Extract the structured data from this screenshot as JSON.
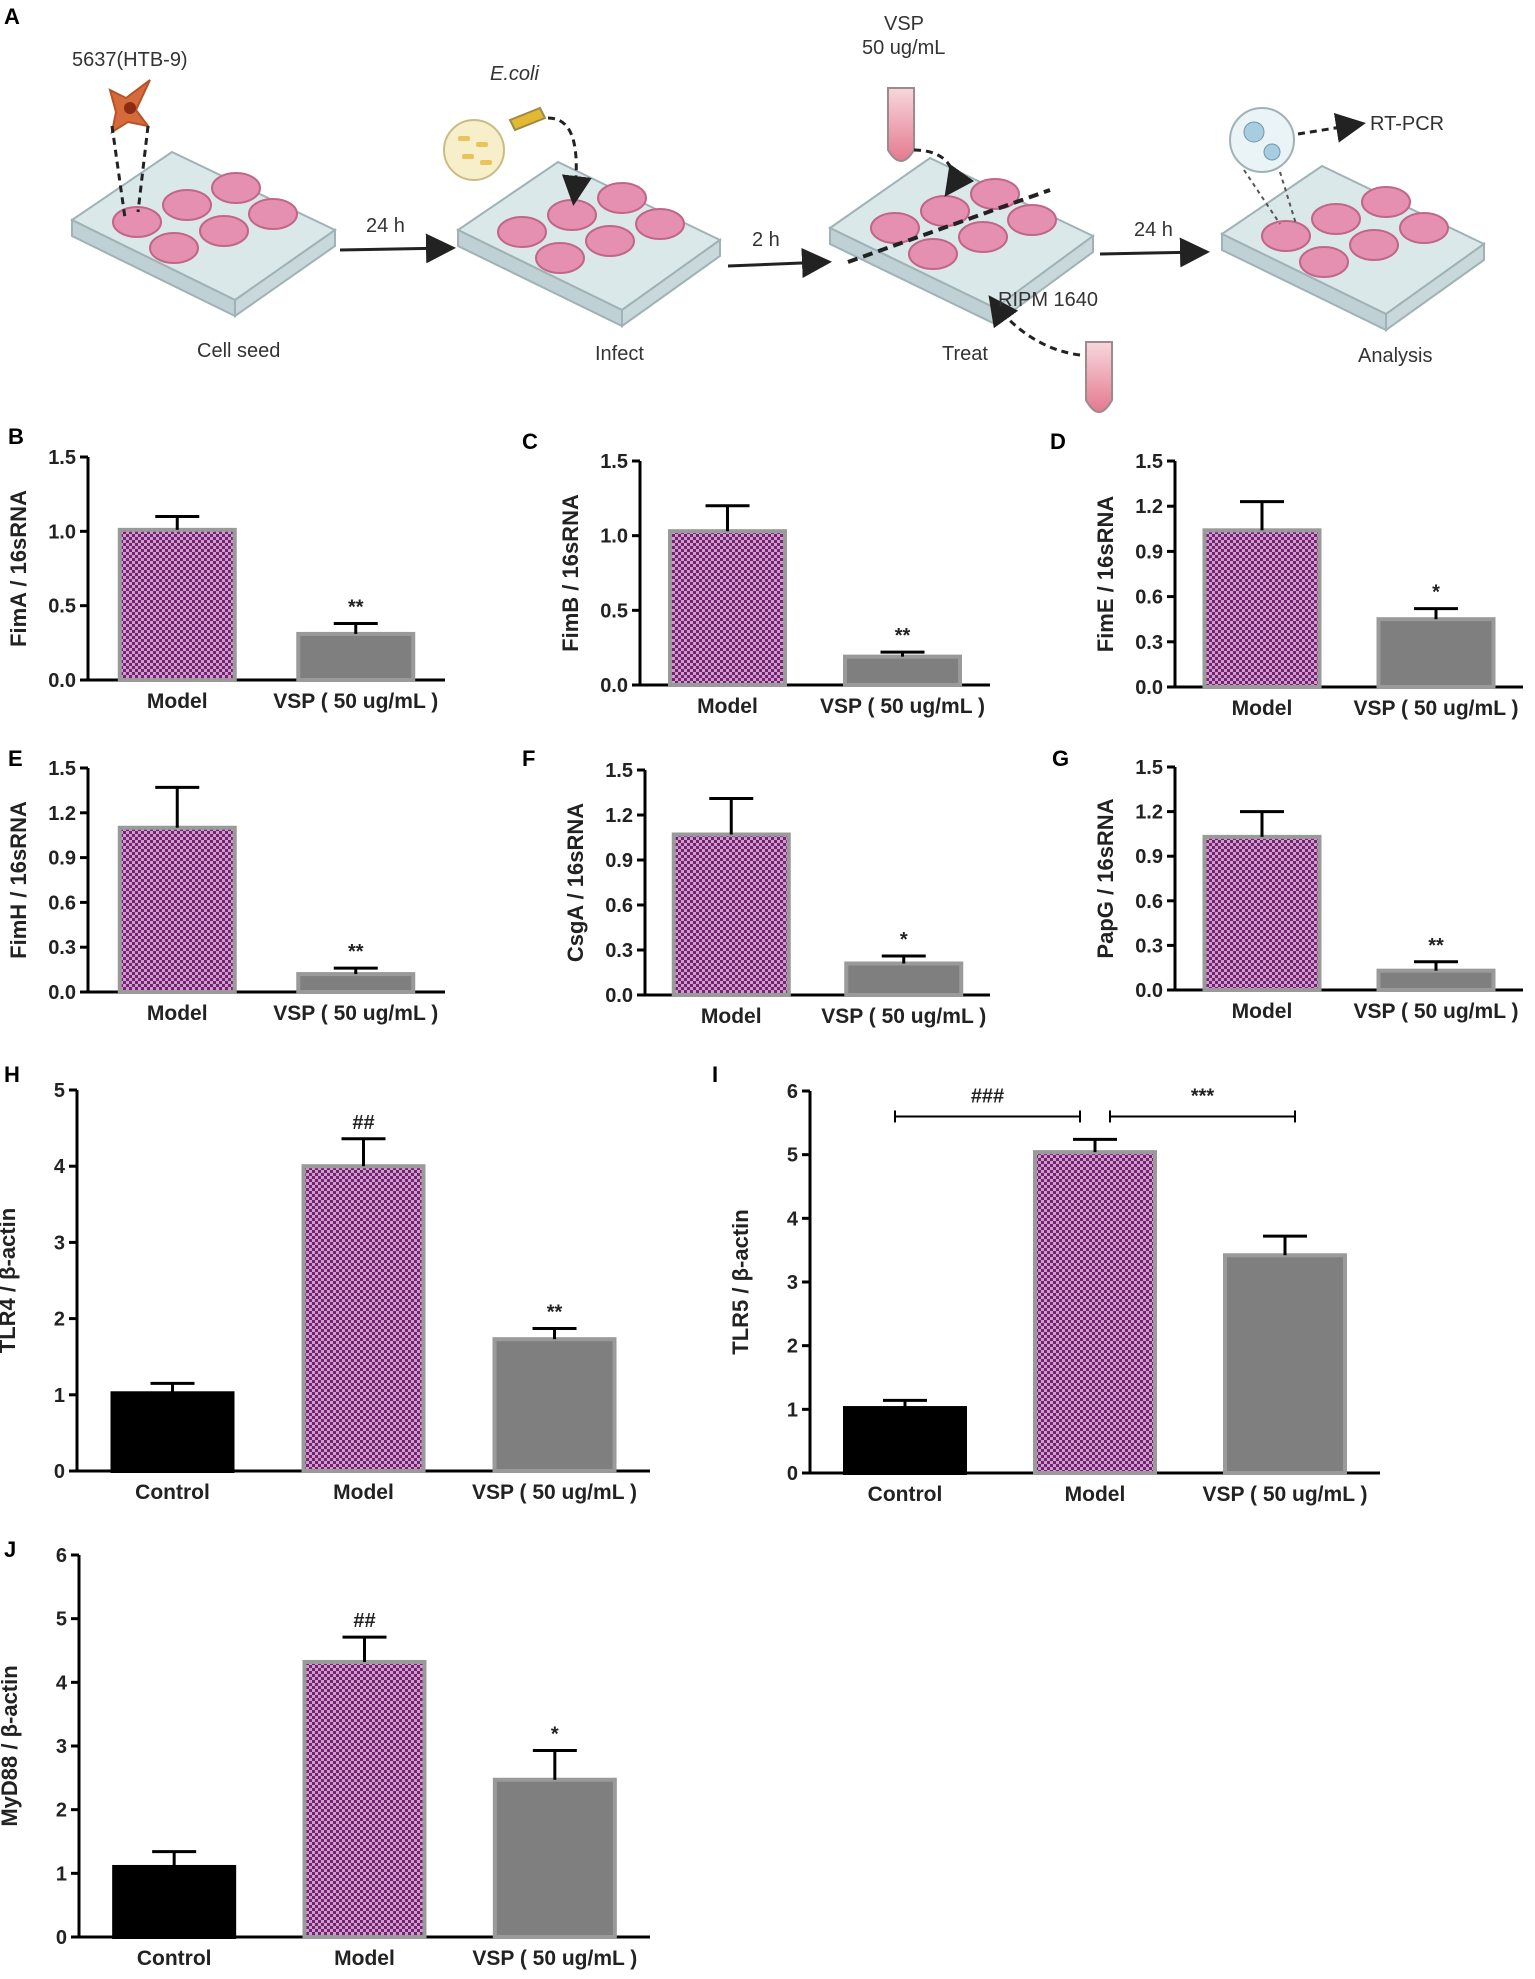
{
  "workflow": {
    "panel_label": "A",
    "cell_line": "5637(HTB-9)",
    "bacteria": "E.coli",
    "treatment_name": "VSP",
    "treatment_dose": "50 ug/mL",
    "medium": "RIPM 1640",
    "assay": "RT-PCR",
    "steps": [
      "24 h",
      "2 h",
      "24 h"
    ],
    "stages": [
      "Cell seed",
      "Infect",
      "Treat",
      "Analysis"
    ]
  },
  "chart_data": [
    {
      "panel": "B",
      "type": "bar",
      "ylabel": "FimA / 16sRNA",
      "categories": [
        "Model",
        "VSP ( 50 ug/mL )"
      ],
      "values": [
        1.01,
        0.31
      ],
      "errors": [
        0.09,
        0.07
      ],
      "significance": [
        "",
        "**"
      ],
      "ylim": [
        0,
        1.5
      ],
      "yticks": [
        "0.0",
        "0.5",
        "1.0",
        "1.5"
      ]
    },
    {
      "panel": "C",
      "type": "bar",
      "ylabel": "FimB / 16sRNA",
      "categories": [
        "Model",
        "VSP ( 50 ug/mL )"
      ],
      "values": [
        1.03,
        0.19
      ],
      "errors": [
        0.17,
        0.03
      ],
      "significance": [
        "",
        "**"
      ],
      "ylim": [
        0,
        1.5
      ],
      "yticks": [
        "0.0",
        "0.5",
        "1.0",
        "1.5"
      ]
    },
    {
      "panel": "D",
      "type": "bar",
      "ylabel": "FimE / 16sRNA",
      "categories": [
        "Model",
        "VSP ( 50 ug/mL )"
      ],
      "values": [
        1.04,
        0.45
      ],
      "errors": [
        0.19,
        0.07
      ],
      "significance": [
        "",
        "*"
      ],
      "ylim": [
        0,
        1.5
      ],
      "yticks": [
        "0.0",
        "0.3",
        "0.6",
        "0.9",
        "1.2",
        "1.5"
      ]
    },
    {
      "panel": "E",
      "type": "bar",
      "ylabel": "FimH / 16sRNA",
      "categories": [
        "Model",
        "VSP ( 50 ug/mL )"
      ],
      "values": [
        1.1,
        0.12
      ],
      "errors": [
        0.27,
        0.04
      ],
      "significance": [
        "",
        "**"
      ],
      "ylim": [
        0,
        1.5
      ],
      "yticks": [
        "0.0",
        "0.3",
        "0.6",
        "0.9",
        "1.2",
        "1.5"
      ]
    },
    {
      "panel": "F",
      "type": "bar",
      "ylabel": "CsgA / 16sRNA",
      "categories": [
        "Model",
        "VSP ( 50 ug/mL )"
      ],
      "values": [
        1.07,
        0.21
      ],
      "errors": [
        0.24,
        0.05
      ],
      "significance": [
        "",
        "*"
      ],
      "ylim": [
        0,
        1.5
      ],
      "yticks": [
        "0.0",
        "0.3",
        "0.6",
        "0.9",
        "1.2",
        "1.5"
      ]
    },
    {
      "panel": "G",
      "type": "bar",
      "ylabel": "PapG / 16sRNA",
      "categories": [
        "Model",
        "VSP ( 50 ug/mL )"
      ],
      "values": [
        1.03,
        0.13
      ],
      "errors": [
        0.17,
        0.06
      ],
      "significance": [
        "",
        "**"
      ],
      "ylim": [
        0,
        1.5
      ],
      "yticks": [
        "0.0",
        "0.3",
        "0.6",
        "0.9",
        "1.2",
        "1.5"
      ]
    },
    {
      "panel": "H",
      "type": "bar",
      "ylabel": "TLR4 / β-actin",
      "categories": [
        "Control",
        "Model",
        "VSP ( 50 ug/mL )"
      ],
      "values": [
        1.02,
        4.0,
        1.73
      ],
      "errors": [
        0.13,
        0.36,
        0.14
      ],
      "significance": [
        "",
        "##",
        "**"
      ],
      "ylim": [
        0,
        5
      ],
      "yticks": [
        "0",
        "1",
        "2",
        "3",
        "4",
        "5"
      ]
    },
    {
      "panel": "I",
      "type": "bar",
      "ylabel": "TLR5 / β-actin",
      "categories": [
        "Control",
        "Model",
        "VSP ( 50 ug/mL )"
      ],
      "values": [
        1.02,
        5.04,
        3.42
      ],
      "errors": [
        0.12,
        0.2,
        0.3
      ],
      "significance": [
        "",
        "",
        ""
      ],
      "ylim": [
        0,
        6
      ],
      "yticks": [
        "0",
        "1",
        "2",
        "3",
        "4",
        "5",
        "6"
      ],
      "brackets": [
        {
          "from": 0,
          "to": 1,
          "label": "###"
        },
        {
          "from": 1,
          "to": 2,
          "label": "***"
        }
      ],
      "bracket_y": 5.6
    },
    {
      "panel": "J",
      "type": "bar",
      "ylabel": "MyD88 / β-actin",
      "categories": [
        "Control",
        "Model",
        "VSP ( 50 ug/mL )"
      ],
      "values": [
        1.1,
        4.32,
        2.47
      ],
      "errors": [
        0.24,
        0.39,
        0.46
      ],
      "significance": [
        "",
        "##",
        "*"
      ],
      "ylim": [
        0,
        6
      ],
      "yticks": [
        "0",
        "1",
        "2",
        "3",
        "4",
        "5",
        "6"
      ]
    }
  ]
}
